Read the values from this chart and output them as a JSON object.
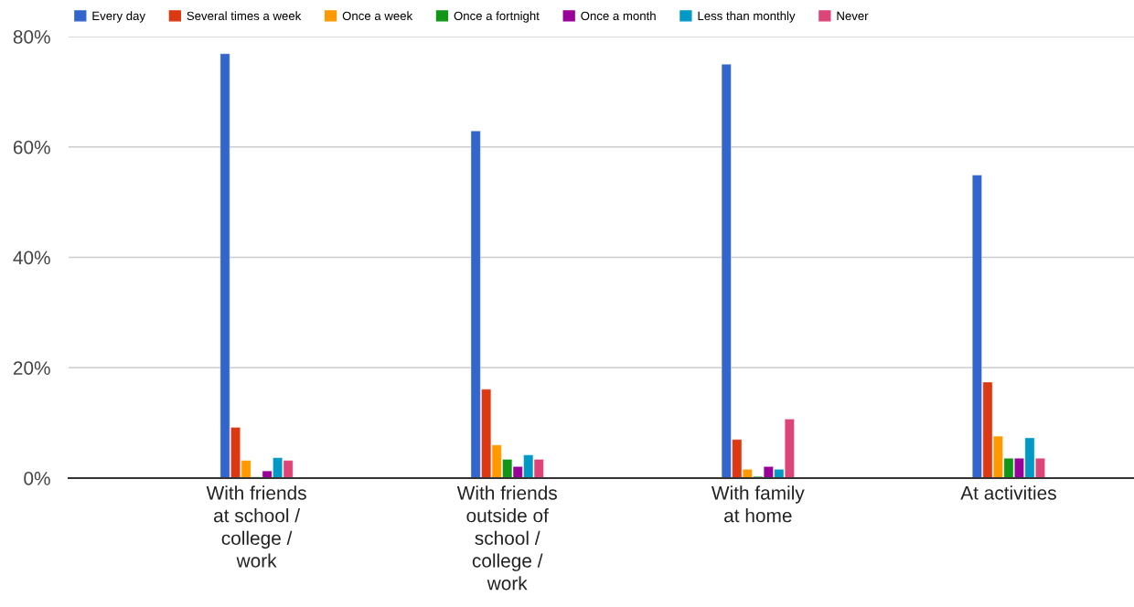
{
  "chart_data": {
    "type": "bar",
    "categories": [
      "With friends\nat school /\ncollege /\nwork",
      "With friends\noutside of\nschool /\ncollege /\nwork",
      "With family\nat home",
      "At activities"
    ],
    "series": [
      {
        "name": "Every day",
        "color": "#3366cc",
        "values": [
          76.9,
          62.9,
          75.0,
          54.9
        ]
      },
      {
        "name": "Several times a week",
        "color": "#dc3912",
        "values": [
          9.2,
          16.1,
          7.0,
          17.4
        ]
      },
      {
        "name": "Once a week",
        "color": "#ff9900",
        "values": [
          3.2,
          6.0,
          1.6,
          7.6
        ]
      },
      {
        "name": "Once a fortnight",
        "color": "#109618",
        "values": [
          0.2,
          3.4,
          0.3,
          3.6
        ]
      },
      {
        "name": "Once a month",
        "color": "#990099",
        "values": [
          1.3,
          2.1,
          2.1,
          3.6
        ]
      },
      {
        "name": "Less than monthly",
        "color": "#0099c6",
        "values": [
          3.7,
          4.2,
          1.6,
          7.3
        ]
      },
      {
        "name": "Never",
        "color": "#dd4477",
        "values": [
          3.2,
          3.4,
          10.7,
          3.6
        ]
      }
    ],
    "ylim": [
      0,
      80
    ],
    "yticks": [
      {
        "value": 0,
        "label": "0%"
      },
      {
        "value": 20,
        "label": "20%"
      },
      {
        "value": 40,
        "label": "40%"
      },
      {
        "value": 60,
        "label": "60%"
      },
      {
        "value": 80,
        "label": "80%"
      }
    ],
    "grid": "y",
    "legend": "top left"
  }
}
